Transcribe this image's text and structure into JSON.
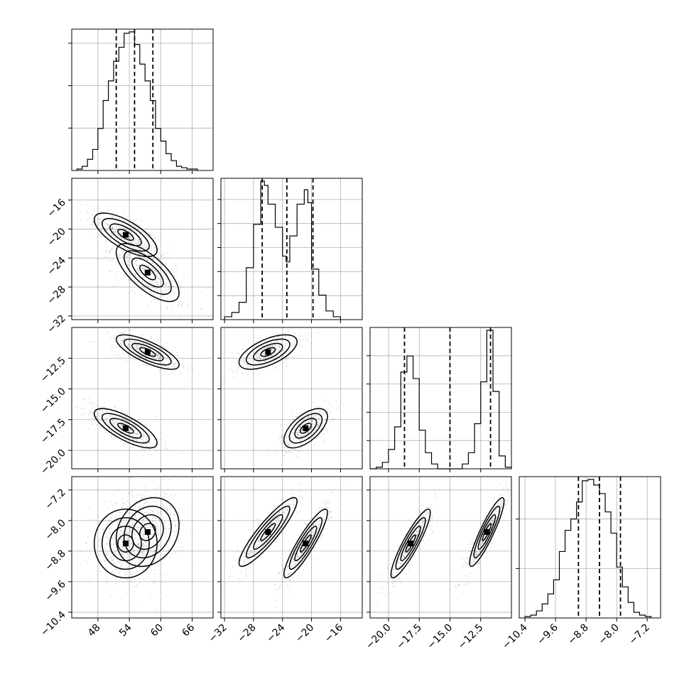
{
  "chart_data": {
    "type": "corner",
    "grid": true,
    "parameters": [
      {
        "id": "p0",
        "range": [
          43,
          70
        ],
        "ticks": [
          48,
          54,
          60,
          66
        ],
        "tick_labels": [
          "48",
          "54",
          "60",
          "66"
        ],
        "quantiles": [
          51.5,
          55.0,
          58.5
        ],
        "histogram": {
          "bin_edges": [
            44,
            45,
            46,
            47,
            48,
            49,
            50,
            51,
            52,
            53,
            54,
            55,
            56,
            57,
            58,
            59,
            60,
            61,
            62,
            63,
            64,
            65,
            66,
            67
          ],
          "values": [
            1,
            3,
            8,
            15,
            30,
            50,
            64,
            78,
            88,
            98,
            99,
            90,
            76,
            64,
            50,
            30,
            21,
            12,
            7,
            3,
            2,
            1,
            1
          ],
          "ytick_fractions": [
            0.3,
            0.6,
            0.9
          ]
        },
        "components": [
          {
            "mean": 53.3,
            "sd": 3.0
          },
          {
            "mean": 57.5,
            "sd": 3.0
          }
        ]
      },
      {
        "id": "p1",
        "range": [
          -32.5,
          -13
        ],
        "ticks": [
          -32,
          -28,
          -24,
          -20,
          -16
        ],
        "tick_labels": [
          "−32",
          "−28",
          "−24",
          "−20",
          "−16"
        ],
        "quantiles": [
          -26.8,
          -23.4,
          -19.8
        ],
        "histogram": {
          "bin_edges": [
            -32,
            -31,
            -30,
            -29,
            -28,
            -27,
            -26.5,
            -26,
            -25,
            -24,
            -23.5,
            -23,
            -22,
            -21,
            -20.5,
            -20,
            -19,
            -18,
            -17,
            -16
          ],
          "values": [
            2,
            5,
            12,
            36,
            66,
            96,
            93,
            80,
            64,
            44,
            40,
            58,
            80,
            90,
            81,
            35,
            17,
            6,
            2
          ],
          "ytick_fractions": [
            0.17,
            0.34,
            0.51,
            0.68,
            0.85
          ]
        },
        "components": [
          {
            "mean": -26.0,
            "sd": 2.0
          },
          {
            "mean": -20.8,
            "sd": 1.5
          }
        ]
      },
      {
        "id": "p2",
        "range": [
          -21.5,
          -10
        ],
        "ticks": [
          -20.0,
          -17.5,
          -15.0,
          -12.5
        ],
        "tick_labels": [
          "−20.0",
          "−17.5",
          "−15.0",
          "−12.5"
        ],
        "quantiles": [
          -18.7,
          -15.0,
          -11.7
        ],
        "histogram": {
          "bin_edges": [
            -21.5,
            -21,
            -20.5,
            -20,
            -19.5,
            -19,
            -18.5,
            -18,
            -17.5,
            -17,
            -16.5,
            -16,
            -15.5,
            -15,
            -14.5,
            -14,
            -13.5,
            -13,
            -12.5,
            -12,
            -11.5,
            -11,
            -10.5,
            -10
          ],
          "values": [
            0,
            1,
            4,
            12,
            26,
            60,
            70,
            56,
            24,
            10,
            3,
            0,
            0,
            0,
            0,
            3,
            10,
            28,
            54,
            86,
            48,
            8,
            1
          ],
          "ytick_fractions": [
            0.2,
            0.4,
            0.6,
            0.8
          ]
        },
        "components": [
          {
            "mean": -18.2,
            "sd": 0.8
          },
          {
            "mean": -12.0,
            "sd": 0.7
          }
        ]
      },
      {
        "id": "p3",
        "range": [
          -10.55,
          -6.85
        ],
        "ticks": [
          -10.4,
          -9.6,
          -8.8,
          -8.0,
          -7.2
        ],
        "tick_labels": [
          "−10.4",
          "−9.6",
          "−8.8",
          "−8.0",
          "−7.2"
        ],
        "quantiles": [
          -9.0,
          -8.45,
          -7.9
        ],
        "histogram": {
          "bin_edges": [
            -10.4,
            -10.25,
            -10.1,
            -9.95,
            -9.8,
            -9.65,
            -9.5,
            -9.35,
            -9.2,
            -9.05,
            -8.9,
            -8.75,
            -8.6,
            -8.45,
            -8.3,
            -8.15,
            -8.0,
            -7.85,
            -7.7,
            -7.55,
            -7.4,
            -7.25,
            -7.1
          ],
          "values": [
            1,
            2,
            5,
            10,
            17,
            27,
            47,
            62,
            70,
            82,
            97,
            98,
            94,
            88,
            75,
            60,
            36,
            22,
            11,
            4,
            2,
            1
          ],
          "ytick_fractions": [
            0.35,
            0.7
          ]
        },
        "components": [
          {
            "mean": -8.3,
            "sd": 0.45
          },
          {
            "mean": -8.6,
            "sd": 0.45
          }
        ]
      }
    ],
    "correlations": {
      "p0": {
        "p1": [
          -0.7,
          -0.7
        ],
        "p2": [
          -0.75,
          -0.75
        ],
        "p3": [
          0.0,
          0.2
        ]
      },
      "p1": {
        "p2": [
          0.6,
          0.6
        ],
        "p3": [
          0.9,
          0.9
        ]
      },
      "p2": {
        "p3": [
          0.9,
          0.9
        ]
      }
    },
    "mixture_pairings": {
      "p0": [
        0,
        1
      ],
      "p1": [
        1,
        0
      ],
      "p2": [
        0,
        1
      ],
      "p3": [
        1,
        0
      ]
    }
  }
}
